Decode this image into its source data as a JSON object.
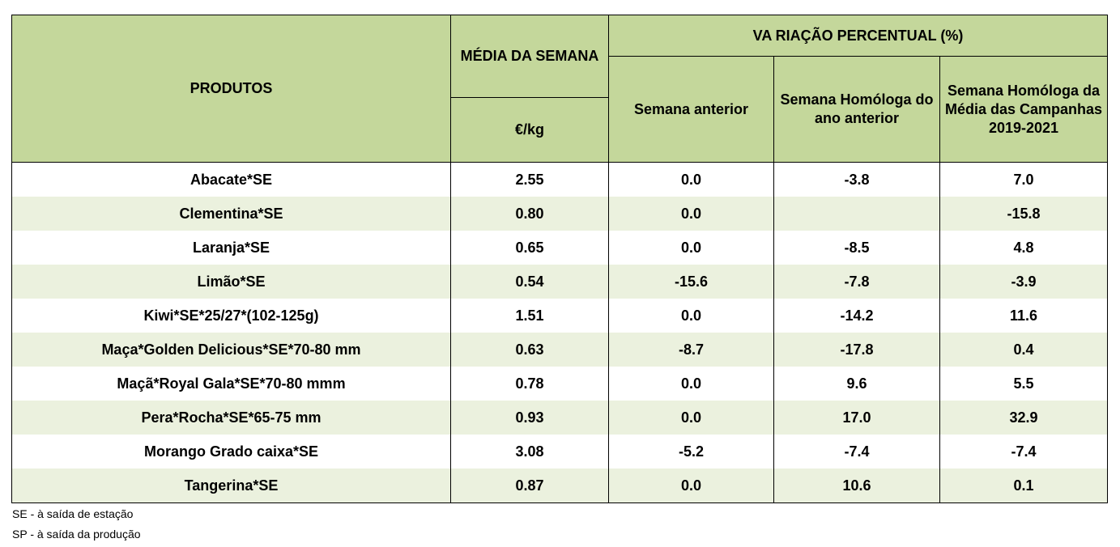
{
  "header": {
    "produtos": "PRODUTOS",
    "media_semana": "MÉDIA DA SEMANA",
    "unidade": "€/kg",
    "variacao": "VA RIAÇÃO PERCENTUAL (%)",
    "semana_anterior": "Semana anterior",
    "semana_homologa_ano": "Semana Homóloga do ano anterior",
    "semana_homologa_campanhas": "Semana Homóloga da Média das Campanhas 2019-2021"
  },
  "rows": [
    {
      "produto": "Abacate*SE",
      "media": "2.55",
      "sem_ant": "0.0",
      "hom_ano": "-3.8",
      "hom_camp": "7.0"
    },
    {
      "produto": "Clementina*SE",
      "media": "0.80",
      "sem_ant": "0.0",
      "hom_ano": "",
      "hom_camp": "-15.8"
    },
    {
      "produto": "Laranja*SE",
      "media": "0.65",
      "sem_ant": "0.0",
      "hom_ano": "-8.5",
      "hom_camp": "4.8"
    },
    {
      "produto": "Limão*SE",
      "media": "0.54",
      "sem_ant": "-15.6",
      "hom_ano": "-7.8",
      "hom_camp": "-3.9"
    },
    {
      "produto": "Kiwi*SE*25/27*(102-125g)",
      "media": "1.51",
      "sem_ant": "0.0",
      "hom_ano": "-14.2",
      "hom_camp": "11.6"
    },
    {
      "produto": "Maça*Golden Delicious*SE*70-80 mm",
      "media": "0.63",
      "sem_ant": "-8.7",
      "hom_ano": "-17.8",
      "hom_camp": "0.4"
    },
    {
      "produto": "Maçã*Royal Gala*SE*70-80 mmm",
      "media": "0.78",
      "sem_ant": "0.0",
      "hom_ano": "9.6",
      "hom_camp": "5.5"
    },
    {
      "produto": "Pera*Rocha*SE*65-75 mm",
      "media": "0.93",
      "sem_ant": "0.0",
      "hom_ano": "17.0",
      "hom_camp": "32.9"
    },
    {
      "produto": "Morango Grado caixa*SE",
      "media": "3.08",
      "sem_ant": "-5.2",
      "hom_ano": "-7.4",
      "hom_camp": "-7.4"
    },
    {
      "produto": "Tangerina*SE",
      "media": "0.87",
      "sem_ant": "0.0",
      "hom_ano": "10.6",
      "hom_camp": "0.1"
    }
  ],
  "notes": {
    "se": "SE - à saída de estação",
    "sp": "SP - à saída da produção"
  }
}
